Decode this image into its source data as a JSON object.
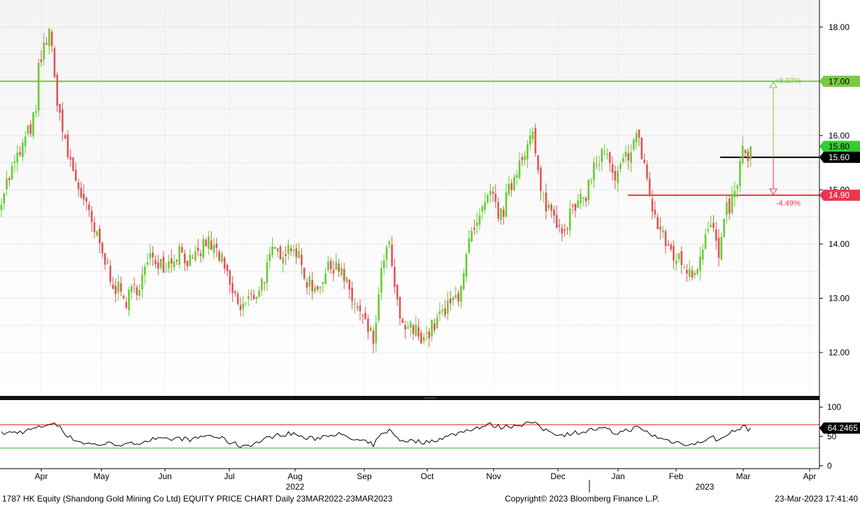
{
  "footer": {
    "left": "1787 HK Equity (Shandong Gold Mining Co Ltd) EQUITY PRICE CHART  Daily 23MAR2022-23MAR2023",
    "center": "Copyright© 2023 Bloomberg Finance L.P.",
    "right": "23-Mar-2023  17:41:40"
  },
  "chart_data": {
    "type": "candlestick",
    "price_axis": {
      "range": [
        11.2,
        18.5
      ],
      "ticks": [
        "18.00",
        "17.00",
        "16.00",
        "15.00",
        "14.00",
        "13.00",
        "12.00"
      ],
      "grid": true
    },
    "rsi_axis": {
      "range": [
        -5,
        112
      ],
      "ticks": [
        "100",
        "50",
        "0"
      ]
    },
    "x_axis": {
      "months": [
        "Apr",
        "May",
        "Jun",
        "Jul",
        "Aug",
        "Sep",
        "Oct",
        "Nov",
        "Dec",
        "Jan",
        "Feb",
        "Mar",
        "Apr"
      ],
      "year_labels": [
        "2022",
        "2023"
      ]
    },
    "levels": [
      {
        "value": 17.0,
        "label": "17.00",
        "color": "#7ac943"
      },
      {
        "value": 15.6,
        "label": "15.60",
        "color": "#000000"
      },
      {
        "value": 14.9,
        "label": "14.90",
        "color": "#e8384f"
      }
    ],
    "last_price": {
      "value": 15.8,
      "label": "15.80",
      "color": "#33cc33"
    },
    "annotations": {
      "up_pct": "+8.97%",
      "down_pct": "-4.49%"
    },
    "rsi": {
      "last_value": "64.2465",
      "upper_line": 70,
      "lower_line": 30
    },
    "colors": {
      "up": "#66cc33",
      "down": "#e05555",
      "rsi_line": "#000000",
      "rsi_upper": "#dd2222",
      "rsi_lower": "#33bb33"
    },
    "close_anchors": [
      [
        0,
        14.9
      ],
      [
        8,
        15.8
      ],
      [
        13,
        16.4
      ],
      [
        14,
        17.2
      ],
      [
        18,
        18.0
      ],
      [
        20,
        17.0
      ],
      [
        24,
        15.8
      ],
      [
        28,
        15.2
      ],
      [
        33,
        14.5
      ],
      [
        38,
        13.8
      ],
      [
        43,
        13.2
      ],
      [
        47,
        12.95
      ],
      [
        52,
        13.3
      ],
      [
        57,
        13.8
      ],
      [
        62,
        13.6
      ],
      [
        67,
        13.9
      ],
      [
        72,
        13.6
      ],
      [
        77,
        14.05
      ],
      [
        82,
        13.8
      ],
      [
        86,
        13.2
      ],
      [
        90,
        12.8
      ],
      [
        95,
        13.05
      ],
      [
        98,
        13.3
      ],
      [
        102,
        13.8
      ],
      [
        106,
        13.9
      ],
      [
        110,
        14.0
      ],
      [
        114,
        13.4
      ],
      [
        118,
        13.2
      ],
      [
        123,
        13.5
      ],
      [
        126,
        13.7
      ],
      [
        131,
        13.1
      ],
      [
        136,
        12.6
      ],
      [
        140,
        12.2
      ],
      [
        144,
        13.8
      ],
      [
        146,
        13.9
      ],
      [
        150,
        12.5
      ],
      [
        155,
        12.4
      ],
      [
        160,
        12.3
      ],
      [
        164,
        12.6
      ],
      [
        168,
        12.8
      ],
      [
        172,
        13.1
      ],
      [
        176,
        14.0
      ],
      [
        179,
        14.3
      ],
      [
        184,
        14.9
      ],
      [
        188,
        14.5
      ],
      [
        192,
        15.1
      ],
      [
        196,
        15.7
      ],
      [
        200,
        16.0
      ],
      [
        203,
        14.9
      ],
      [
        207,
        14.6
      ],
      [
        211,
        14.3
      ],
      [
        215,
        14.6
      ],
      [
        219,
        14.8
      ],
      [
        223,
        15.4
      ],
      [
        227,
        15.7
      ],
      [
        231,
        15.1
      ],
      [
        235,
        15.6
      ],
      [
        239,
        16.0
      ],
      [
        242,
        15.5
      ],
      [
        245,
        14.6
      ],
      [
        249,
        14.1
      ],
      [
        253,
        13.8
      ],
      [
        257,
        13.6
      ],
      [
        261,
        13.5
      ],
      [
        265,
        14.2
      ],
      [
        268,
        14.3
      ],
      [
        270,
        13.7
      ],
      [
        273,
        14.6
      ],
      [
        276,
        14.9
      ],
      [
        279,
        15.7
      ],
      [
        281,
        15.6
      ],
      [
        282,
        15.8
      ]
    ],
    "rsi_anchors": [
      [
        0,
        55
      ],
      [
        8,
        58
      ],
      [
        14,
        65
      ],
      [
        18,
        72
      ],
      [
        22,
        68
      ],
      [
        25,
        50
      ],
      [
        30,
        40
      ],
      [
        35,
        36
      ],
      [
        42,
        38
      ],
      [
        47,
        35
      ],
      [
        52,
        40
      ],
      [
        57,
        45
      ],
      [
        62,
        44
      ],
      [
        67,
        47
      ],
      [
        72,
        44
      ],
      [
        77,
        52
      ],
      [
        82,
        48
      ],
      [
        86,
        40
      ],
      [
        90,
        34
      ],
      [
        95,
        37
      ],
      [
        98,
        43
      ],
      [
        102,
        50
      ],
      [
        106,
        54
      ],
      [
        110,
        55
      ],
      [
        114,
        47
      ],
      [
        118,
        46
      ],
      [
        123,
        53
      ],
      [
        126,
        55
      ],
      [
        131,
        46
      ],
      [
        136,
        41
      ],
      [
        140,
        36
      ],
      [
        144,
        58
      ],
      [
        146,
        60
      ],
      [
        150,
        44
      ],
      [
        155,
        42
      ],
      [
        160,
        40
      ],
      [
        164,
        45
      ],
      [
        168,
        50
      ],
      [
        172,
        56
      ],
      [
        176,
        62
      ],
      [
        179,
        65
      ],
      [
        184,
        70
      ],
      [
        188,
        66
      ],
      [
        192,
        68
      ],
      [
        196,
        71
      ],
      [
        200,
        74
      ],
      [
        203,
        64
      ],
      [
        207,
        58
      ],
      [
        211,
        52
      ],
      [
        215,
        56
      ],
      [
        219,
        58
      ],
      [
        223,
        62
      ],
      [
        227,
        63
      ],
      [
        231,
        55
      ],
      [
        235,
        60
      ],
      [
        239,
        65
      ],
      [
        242,
        60
      ],
      [
        245,
        52
      ],
      [
        249,
        45
      ],
      [
        253,
        41
      ],
      [
        257,
        38
      ],
      [
        261,
        36
      ],
      [
        265,
        45
      ],
      [
        268,
        48
      ],
      [
        270,
        42
      ],
      [
        273,
        55
      ],
      [
        276,
        58
      ],
      [
        279,
        67
      ],
      [
        281,
        63
      ],
      [
        282,
        64.2
      ]
    ]
  }
}
